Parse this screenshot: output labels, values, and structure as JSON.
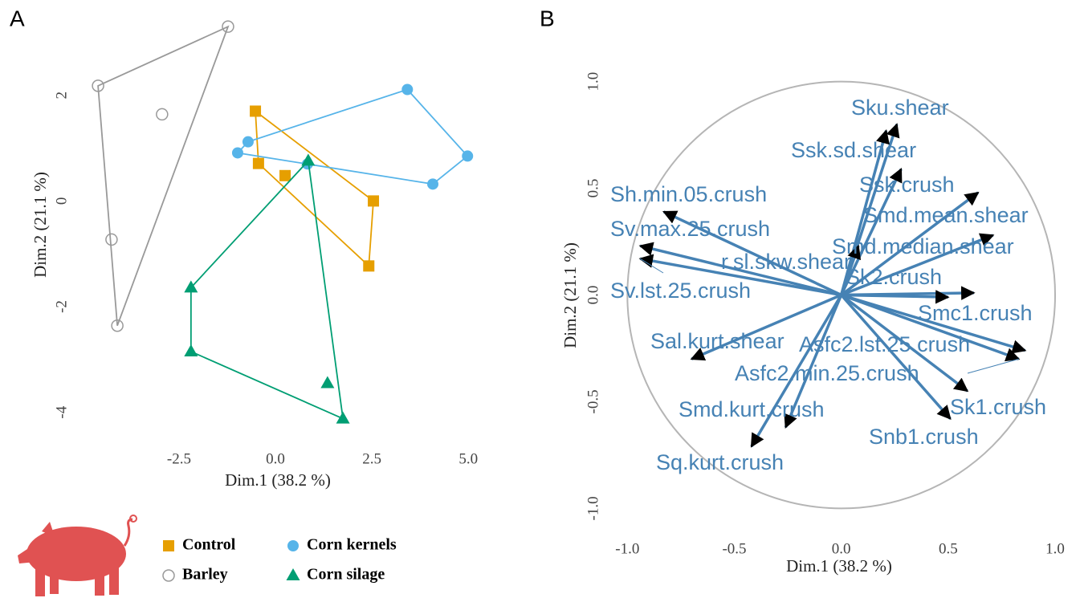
{
  "chart_data": [
    {
      "type": "scatter",
      "panel": "A",
      "xlabel": "Dim.1 (38.2 %)",
      "ylabel": "Dim.2 (21.1 %)",
      "xlim": [
        -5.06,
        5.35
      ],
      "ylim": [
        -4.4,
        3.5
      ],
      "xticks": [
        {
          "value": -2.5,
          "label": "-2.5"
        },
        {
          "value": 0,
          "label": "0.0"
        },
        {
          "value": 2.5,
          "label": "2.5"
        },
        {
          "value": 5,
          "label": "5.0"
        }
      ],
      "yticks": [
        -4,
        -2,
        0,
        2
      ],
      "hull": true,
      "series": [
        {
          "name": "Control",
          "color": "#E69F00",
          "marker": "square",
          "x": [
            -0.52,
            -0.44,
            0.25,
            2.54,
            2.42
          ],
          "y": [
            1.7,
            0.71,
            0.48,
            0.0,
            -1.23
          ]
        },
        {
          "name": "Barley",
          "color": "#999999",
          "marker": "open-circle",
          "x": [
            -1.23,
            -4.6,
            -2.94,
            -4.25,
            -4.1
          ],
          "y": [
            3.3,
            2.18,
            1.64,
            -0.73,
            -2.36
          ]
        },
        {
          "name": "Corn kernels",
          "color": "#56B4E9",
          "marker": "circle",
          "x": [
            3.42,
            4.98,
            4.08,
            -0.98,
            -0.71,
            0.83
          ],
          "y": [
            2.11,
            0.85,
            0.32,
            0.91,
            1.12,
            0.7
          ]
        },
        {
          "name": "Corn silage",
          "color": "#009E73",
          "marker": "triangle",
          "x": [
            0.85,
            -2.19,
            -2.19,
            1.75,
            1.35
          ],
          "y": [
            0.76,
            -1.64,
            -2.85,
            -4.12,
            -3.45
          ]
        }
      ]
    },
    {
      "type": "biplot",
      "panel": "B",
      "xlabel": "Dim.1 (38.2 %)",
      "ylabel": "Dim.2 (21.1 %)",
      "xlim": [
        -1.08,
        1.06
      ],
      "ylim": [
        -1.1,
        1.1
      ],
      "circle": true,
      "color": "#4682B4",
      "xticks": [
        {
          "value": -1,
          "label": "-1.0"
        },
        {
          "value": -0.5,
          "label": "-0.5"
        },
        {
          "value": 0,
          "label": "0.0"
        },
        {
          "value": 0.5,
          "label": "0.5"
        },
        {
          "value": 1,
          "label": "1.0"
        }
      ],
      "yticks": [
        {
          "value": -1,
          "label": "-1.0"
        },
        {
          "value": -0.5,
          "label": "-0.5"
        },
        {
          "value": 0,
          "label": "0.0"
        },
        {
          "value": 0.5,
          "label": "0.5"
        },
        {
          "value": 1,
          "label": "1.0"
        }
      ],
      "variables": [
        {
          "name": "Sku.shear",
          "x": 0.26,
          "y": 0.8
        },
        {
          "name": "Ssk.sd.shear",
          "x": 0.21,
          "y": 0.77
        },
        {
          "name": "Ssk.crush",
          "x": 0.28,
          "y": 0.59
        },
        {
          "name": "Smd.mean.shear",
          "x": 0.64,
          "y": 0.48
        },
        {
          "name": "Smd.median.shear",
          "x": 0.71,
          "y": 0.28
        },
        {
          "name": "Sh.min.05.crush",
          "x": -0.83,
          "y": 0.39
        },
        {
          "name": "Sv.max.25.crush",
          "x": -0.94,
          "y": 0.23
        },
        {
          "name": "Sv.lst.25.crush",
          "x": -0.94,
          "y": 0.17
        },
        {
          "name": "r.sl.skw.shear",
          "x": 0.08,
          "y": 0.23
        },
        {
          "name": "Sk2.crush",
          "x": 0.62,
          "y": 0.01
        },
        {
          "name": "Smc1.crush",
          "x": 0.5,
          "y": -0.01
        },
        {
          "name": "Asfc2.lst.25.crush",
          "x": 0.86,
          "y": -0.26
        },
        {
          "name": "Asfc2.min.25.crush",
          "x": 0.83,
          "y": -0.3
        },
        {
          "name": "Sk1.crush",
          "x": 0.59,
          "y": -0.45
        },
        {
          "name": "Snb1.crush",
          "x": 0.51,
          "y": -0.58
        },
        {
          "name": "Sal.kurt.shear",
          "x": -0.7,
          "y": -0.3
        },
        {
          "name": "Smd.kurt.crush",
          "x": -0.26,
          "y": -0.62
        },
        {
          "name": "Sq.kurt.crush",
          "x": -0.42,
          "y": -0.71
        }
      ]
    }
  ]
}
